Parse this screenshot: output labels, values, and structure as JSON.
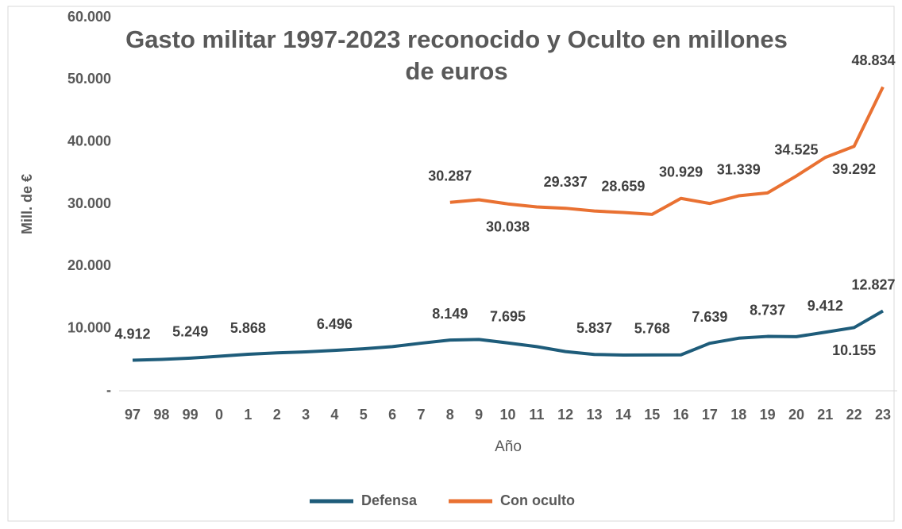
{
  "chart_data": {
    "type": "line",
    "title": "Gasto militar 1997-2023 reconocido y Oculto en millones de euros",
    "x_label": "Año",
    "y_label": "Mill. de €",
    "categories": [
      "97",
      "98",
      "99",
      "0",
      "1",
      "2",
      "3",
      "4",
      "5",
      "6",
      "7",
      "8",
      "9",
      "10",
      "11",
      "12",
      "13",
      "14",
      "15",
      "16",
      "17",
      "18",
      "19",
      "20",
      "21",
      "22",
      "23"
    ],
    "series": [
      {
        "name": "Defensa",
        "color": "#1e5c7a",
        "values": [
          4912,
          5050,
          5249,
          5550,
          5868,
          6100,
          6250,
          6496,
          6750,
          7100,
          7650,
          8149,
          8250,
          7695,
          7100,
          6300,
          5837,
          5750,
          5768,
          5780,
          7639,
          8450,
          8737,
          8700,
          9412,
          10155,
          12827
        ],
        "value_labels": [
          "4.912",
          null,
          "5.249",
          null,
          "5.868",
          null,
          null,
          "6.496",
          null,
          null,
          null,
          "8.149",
          null,
          "7.695",
          null,
          null,
          "5.837",
          null,
          "5.768",
          null,
          "7.639",
          null,
          "8.737",
          null,
          "9.412",
          "10.155",
          "12.827"
        ]
      },
      {
        "name": "Con oculto",
        "color": "#e97132",
        "values": [
          null,
          null,
          null,
          null,
          null,
          null,
          null,
          null,
          null,
          null,
          null,
          30287,
          30700,
          30038,
          29550,
          29337,
          28900,
          28659,
          28350,
          30929,
          30100,
          31339,
          31800,
          34525,
          37500,
          39292,
          48834
        ],
        "value_labels": [
          null,
          null,
          null,
          null,
          null,
          null,
          null,
          null,
          null,
          null,
          null,
          "30.287",
          null,
          "30.038",
          null,
          "29.337",
          null,
          "28.659",
          null,
          "30.929",
          null,
          "31.339",
          null,
          "34.525",
          null,
          "39.292",
          "48.834"
        ]
      }
    ],
    "ylim": [
      0,
      60000
    ],
    "yticks": [
      {
        "value": 0,
        "label": "-"
      },
      {
        "value": 10000,
        "label": "10.000"
      },
      {
        "value": 20000,
        "label": "20.000"
      },
      {
        "value": 30000,
        "label": "30.000"
      },
      {
        "value": 40000,
        "label": "40.000"
      },
      {
        "value": 50000,
        "label": "50.000"
      },
      {
        "value": 60000,
        "label": "60.000"
      }
    ],
    "grid": false,
    "legend": "bottom"
  }
}
